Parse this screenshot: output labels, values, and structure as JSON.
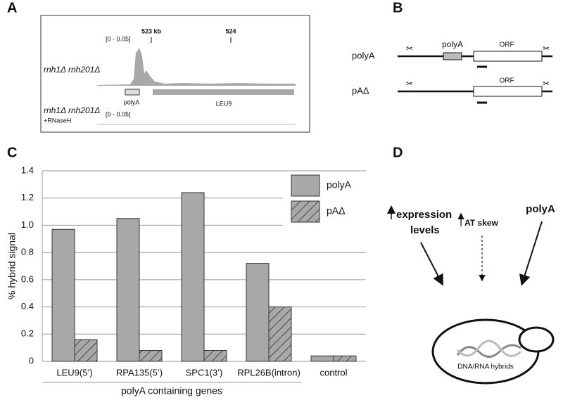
{
  "panels": {
    "a": {
      "label": "A",
      "scale_top": "[0 - 0.05]",
      "coord_1": "523 kb",
      "coord_2": "524",
      "track_1": "rnh1Δ rnh201Δ",
      "feature_1": "polyA",
      "feature_2": "LEU9",
      "track_2": "rnh1Δ rnh201Δ",
      "track_2_note": "+RNaseH",
      "scale_bottom": "[0 - 0.05]"
    },
    "b": {
      "label": "B",
      "row_1": "polyA",
      "row_1_box": "polyA",
      "row_1_orf": "ORF",
      "row_2": "pAΔ",
      "row_2_orf": "ORF"
    },
    "c": {
      "label": "C"
    },
    "d": {
      "label": "D",
      "factor_1a": "expression",
      "factor_1b": "levels",
      "factor_2": "AT skew",
      "factor_3": "polyA",
      "hybrids": "DNA/RNA hybrids"
    }
  },
  "chart_data": {
    "type": "bar",
    "y_label": "% hybrid signal",
    "group_label": "polyA containing genes",
    "categories": [
      "LEU9(5’)",
      "RPA135(5’)",
      "SPC1(3’)",
      "RPL26B(intron)",
      "control"
    ],
    "series": [
      {
        "name": "polyA",
        "color": "#a8a8a8",
        "values": [
          0.97,
          1.05,
          1.24,
          0.72,
          0.04
        ]
      },
      {
        "name": "pAΔ",
        "color": "#a8a8a8",
        "hatch": true,
        "values": [
          0.16,
          0.08,
          0.08,
          0.4,
          0.04
        ]
      }
    ],
    "ylim": [
      0,
      1.4
    ],
    "yticks": [
      0,
      0.2,
      0.4,
      0.6,
      0.8,
      {
        "value": 1,
        "label": "1.0"
      },
      1.2,
      1.4
    ],
    "grid": true,
    "legend": "upper right"
  }
}
